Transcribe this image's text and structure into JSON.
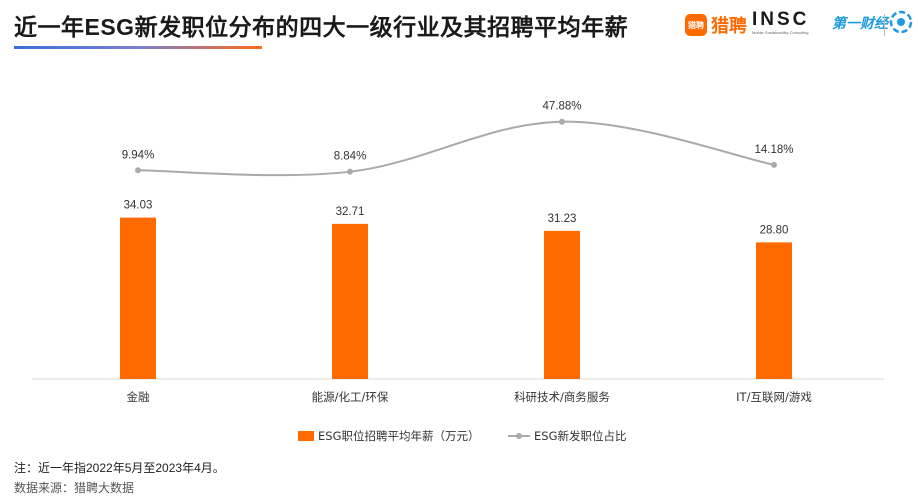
{
  "title": "近一年ESG新发职位分布的四大一级行业及其招聘平均年薪",
  "brands": {
    "liepin_badge": "猎聘",
    "liepin_name": "猎聘",
    "insc_name": "INSC",
    "insc_sub": "Mobile Sustainability Consulting",
    "yicai_name": "第一财经"
  },
  "colors": {
    "bar": "#ff6a00",
    "line": "#aaaaaa",
    "accent_blue": "#3a6fd8"
  },
  "chart_data": {
    "type": "bar",
    "categories": [
      "金融",
      "能源/化工/环保",
      "科研技术/商务服务",
      "IT/互联网/游戏"
    ],
    "series": [
      {
        "name": "ESG职位招聘平均年薪（万元）",
        "type": "bar",
        "values": [
          34.03,
          32.71,
          31.23,
          28.8
        ],
        "labels": [
          "34.03",
          "32.71",
          "31.23",
          "28.80"
        ]
      },
      {
        "name": "ESG新发职位占比",
        "type": "line",
        "values": [
          9.94,
          8.84,
          47.88,
          14.18
        ],
        "labels": [
          "9.94%",
          "8.84%",
          "47.88%",
          "14.18%"
        ],
        "unit": "%"
      }
    ],
    "bar_ylim": [
      0,
      70
    ],
    "line_ylim": [
      -80,
      80
    ],
    "legend": "bottom"
  },
  "notes": {
    "note1": "注：近一年指2022年5月至2023年4月。",
    "source": "数据来源：猎聘大数据"
  }
}
